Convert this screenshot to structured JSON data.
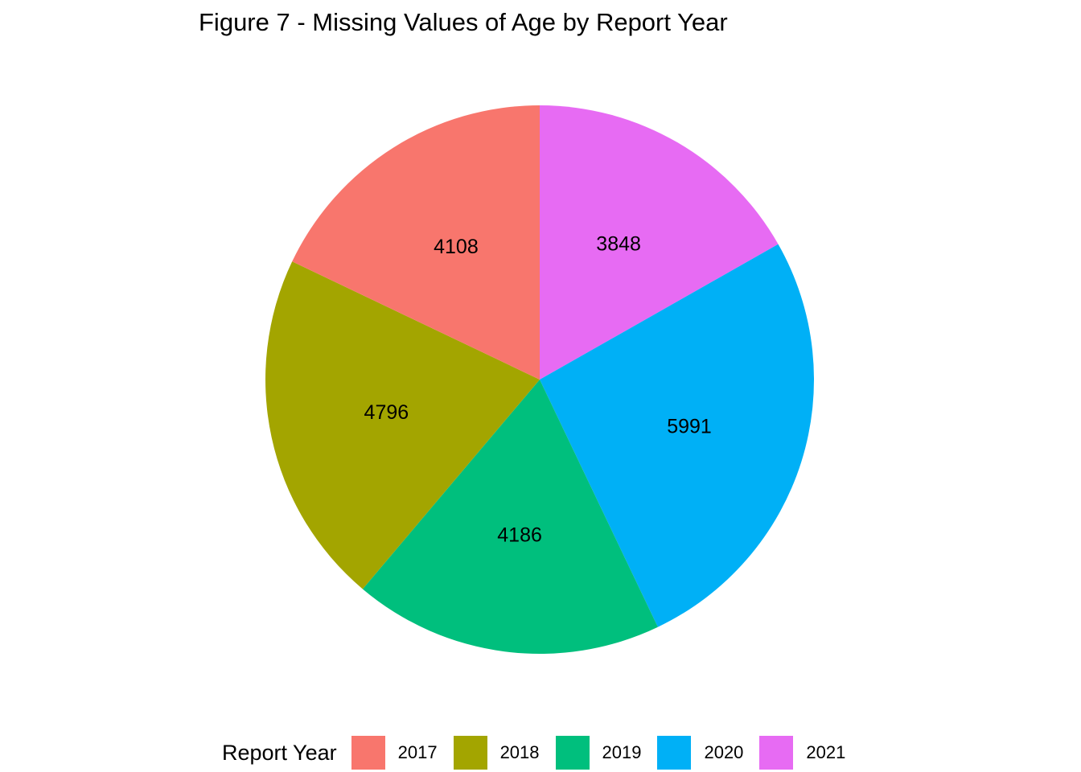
{
  "chart_data": {
    "type": "pie",
    "title": "Figure 7 - Missing Values of Age by Report Year",
    "legend": {
      "title": "Report Year",
      "position": "bottom"
    },
    "slices": [
      {
        "label": "2017",
        "value": 4108,
        "color": "#F8766D"
      },
      {
        "label": "2018",
        "value": 4796,
        "color": "#A3A500"
      },
      {
        "label": "2019",
        "value": 4186,
        "color": "#00BF7D"
      },
      {
        "label": "2020",
        "value": 5991,
        "color": "#00B0F6"
      },
      {
        "label": "2021",
        "value": 3848,
        "color": "#E76BF3"
      }
    ]
  }
}
